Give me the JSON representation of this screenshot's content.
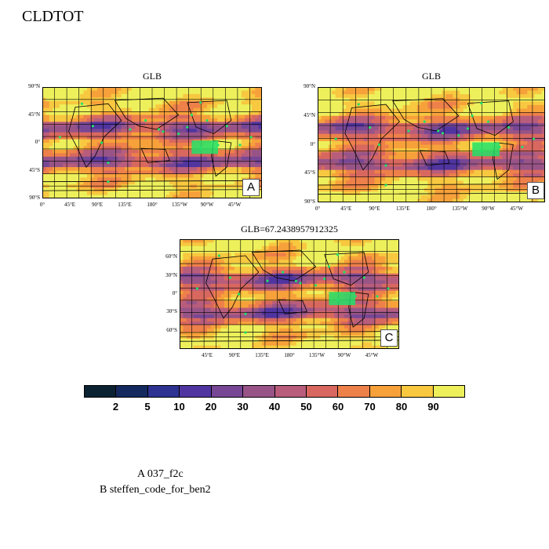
{
  "figure": {
    "title": "CLDTOT"
  },
  "panels": [
    {
      "id": "A",
      "title": "GLB",
      "letter": "A",
      "lat_labels": [
        "90°N",
        "45°N",
        "0°",
        "45°S",
        "90°S"
      ],
      "lon_labels": [
        "0°",
        "45°E",
        "90°E",
        "135°E",
        "180°",
        "135°W",
        "90°W",
        "45°W"
      ]
    },
    {
      "id": "B",
      "title": "GLB",
      "letter": "B",
      "lat_labels": [
        "90°N",
        "45°N",
        "0°",
        "45°S",
        "90°S"
      ],
      "lon_labels": [
        "0°",
        "45°E",
        "90°E",
        "135°E",
        "180°",
        "135°W",
        "90°W",
        "45°W"
      ]
    },
    {
      "id": "C",
      "title": "GLB=67.2438957912325",
      "letter": "C",
      "lat_labels": [
        "60°N",
        "30°N",
        "0°",
        "30°S",
        "60°S"
      ],
      "lon_labels": [
        "45°E",
        "90°E",
        "135°E",
        "180°",
        "135°W",
        "90°W",
        "45°W"
      ]
    }
  ],
  "colorbar": {
    "colors": [
      "#0b2233",
      "#142a5e",
      "#2e3291",
      "#5035a0",
      "#774795",
      "#985487",
      "#b85d7c",
      "#d8685f",
      "#ee804a",
      "#f7a13a",
      "#f7c840",
      "#edf05b"
    ],
    "labels": [
      "2",
      "5",
      "10",
      "20",
      "30",
      "40",
      "50",
      "60",
      "70",
      "80",
      "90"
    ]
  },
  "legend": {
    "lines": [
      "A  037_f2c",
      "B  steffen_code_for_ben2"
    ]
  },
  "marker_color": "#22e06a"
}
